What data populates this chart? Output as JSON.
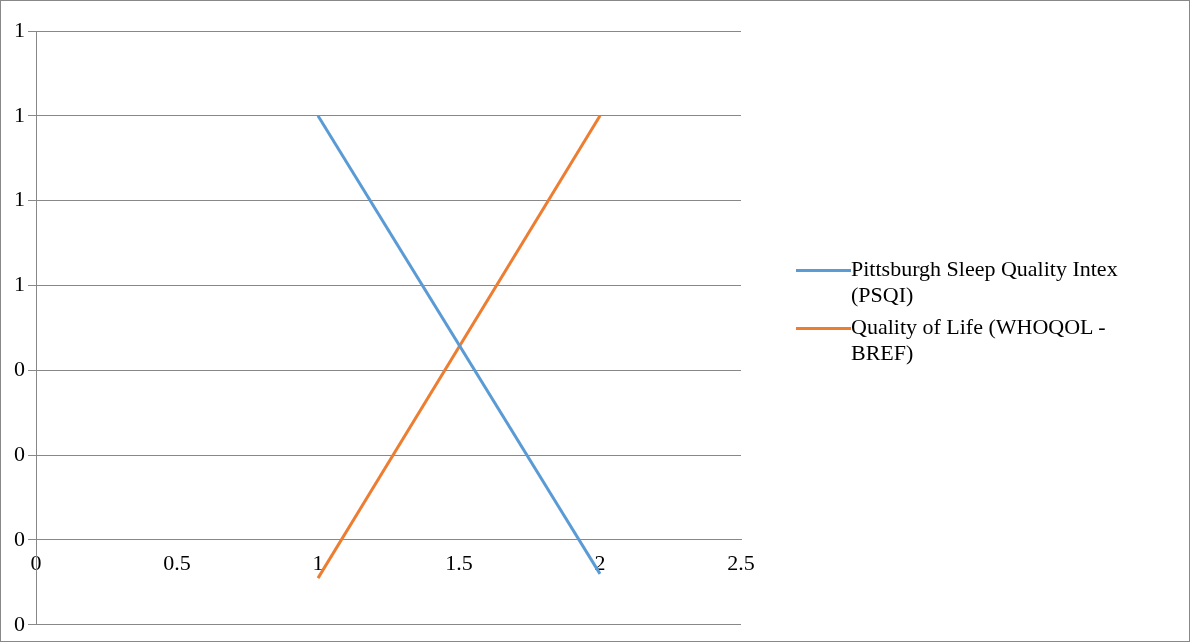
{
  "chart_data": {
    "type": "line",
    "x": [
      1,
      2
    ],
    "series": [
      {
        "name": "Pittsburgh Sleep Quality Intex (PSQI)",
        "color": "#5b9bd5",
        "values": [
          1.0,
          -0.08
        ]
      },
      {
        "name": "Quality of Life (WHOQOL -BREF)",
        "color": "#ed7d31",
        "values": [
          -0.09,
          1.0
        ]
      }
    ],
    "xlim": [
      0,
      2.5
    ],
    "xticks": [
      0,
      0.5,
      1,
      1.5,
      2,
      2.5
    ],
    "ylim": [
      -0.2,
      1.2
    ],
    "yticks": [
      {
        "value": -0.2,
        "label": "0"
      },
      {
        "value": 0,
        "label": "0"
      },
      {
        "value": 0.2,
        "label": "0"
      },
      {
        "value": 0.4,
        "label": "0"
      },
      {
        "value": 0.6,
        "label": "1"
      },
      {
        "value": 0.8,
        "label": "1"
      },
      1,
      {
        "value": 1.2,
        "label": "1"
      }
    ],
    "grid": "y",
    "legend": "right",
    "marker": "none",
    "line_style": "solid"
  }
}
